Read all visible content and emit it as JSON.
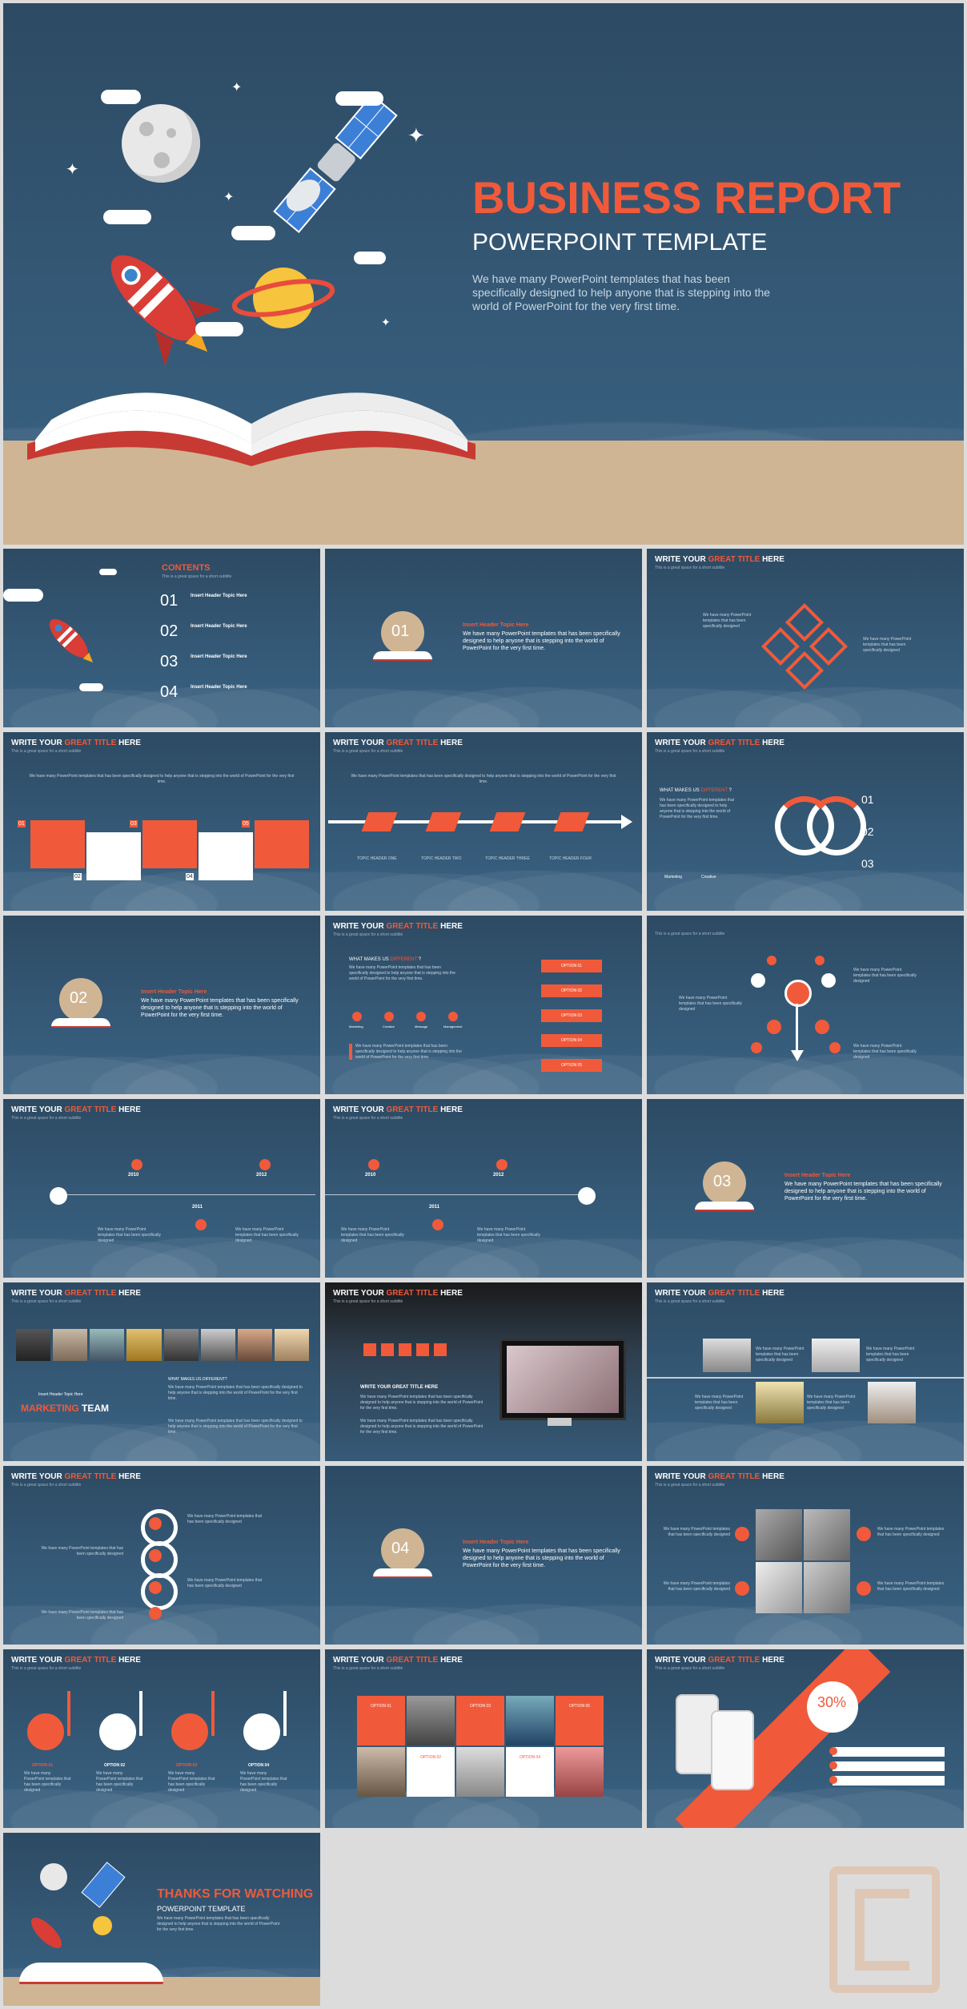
{
  "cover": {
    "title": "BUSINESS REPORT",
    "subtitle": "POWERPOINT TEMPLATE",
    "description": "We have many PowerPoint templates that has been specifically designed to help anyone that is stepping into the world of PowerPoint for the very first time."
  },
  "common": {
    "title_prefix": "WRITE YOUR ",
    "title_accent": "GREAT TITLE",
    "title_suffix": " HERE",
    "subtitle": "This is a great space for a short subtitle",
    "body": "We have many PowerPoint templates that has been specifically designed to help anyone that is stepping into the world of PowerPoint for the very first time.",
    "section_header": "Insert Header Topic Here",
    "option_text": "We have many PowerPoint templates that has been specifically designed"
  },
  "contents": {
    "title": "CONTENTS",
    "subtitle": "This is a great space for a short subtitle",
    "items": [
      {
        "num": "01",
        "label": "Insert Header Topic Here"
      },
      {
        "num": "02",
        "label": "Insert Header Topic Here"
      },
      {
        "num": "03",
        "label": "Insert Header Topic Here"
      },
      {
        "num": "04",
        "label": "Insert Header Topic Here"
      }
    ]
  },
  "sections": [
    "01",
    "02",
    "03",
    "04"
  ],
  "numbered_boxes": [
    "01",
    "02",
    "03",
    "04",
    "05"
  ],
  "why_different": {
    "heading_prefix": "WHAT MAKES US ",
    "heading_accent": "DIFFERENT",
    "heading_suffix": " ?",
    "items": [
      "01",
      "02",
      "03"
    ],
    "tags": [
      "Marketing",
      "Creative"
    ],
    "tags4": [
      "Marketing",
      "Creative",
      "Message",
      "Management"
    ]
  },
  "options": [
    "OPTION 01",
    "OPTION 02",
    "OPTION 03",
    "OPTION 04",
    "OPTION 05"
  ],
  "timeline": {
    "years": [
      "2010",
      "2011",
      "2012"
    ],
    "tags": [
      "TOPIC HEADER ONE",
      "TOPIC HEADER TWO",
      "TOPIC HEADER THREE",
      "TOPIC HEADER FOUR"
    ]
  },
  "team": {
    "title_a": "MARKETING",
    "title_b": " TEAM",
    "header": "Insert Header Topic Here",
    "question": "WHAT MAKES US DIFFERENT?"
  },
  "photo_slide": {
    "header": "WRITE YOUR GREAT TITLE HERE"
  },
  "percent": {
    "value": "30%"
  },
  "thanks": {
    "title": "THANKS FOR WATCHING",
    "subtitle": "POWERPOINT TEMPLATE",
    "text": "We have many PowerPoint templates that has been specifically designed to help anyone that is stepping into the world of PowerPoint for the very first time."
  },
  "colors": {
    "accent": "#f05a3a",
    "navy": "#2d4a63",
    "sand": "#cfb593"
  },
  "icons": [
    "moon-icon",
    "satellite-icon",
    "rocket-icon",
    "planet-icon",
    "book-icon",
    "cloud-icon",
    "star-icon",
    "watermark-logo"
  ]
}
